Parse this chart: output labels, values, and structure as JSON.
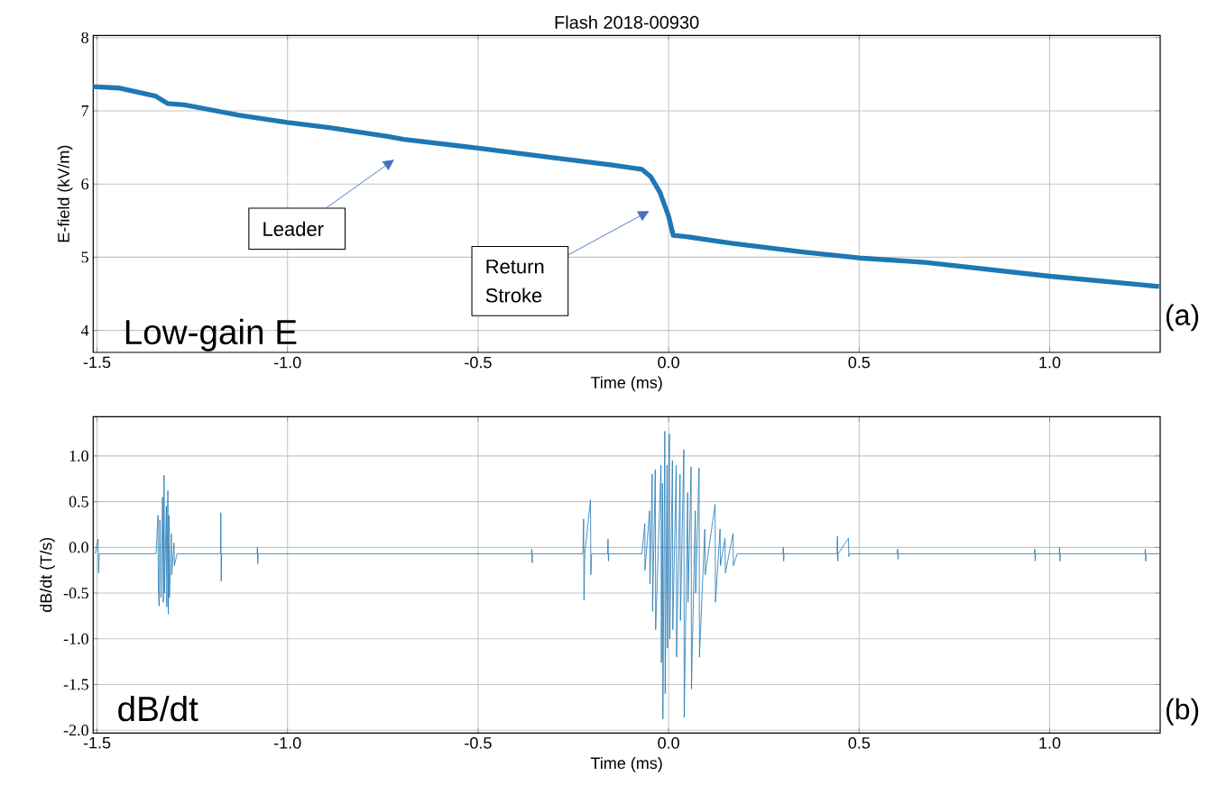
{
  "chart_data": [
    {
      "type": "line",
      "title": "Flash 2018-00930",
      "xlabel": "Time (ms)",
      "ylabel": "E-field (kV/m)",
      "color": "#1f77b4",
      "grid": true,
      "marker": "none",
      "xlim": [
        -1.51,
        1.29
      ],
      "ylim": [
        3.7,
        8.03
      ],
      "xticks": [
        -1.5,
        {
          "value": -1,
          "label": "-1.0"
        },
        -0.5,
        {
          "value": 0,
          "label": "0.0"
        },
        0.5,
        {
          "value": 1,
          "label": "1.0"
        }
      ],
      "yticks": [
        4,
        5,
        6,
        7,
        8
      ],
      "x": [
        -1.51,
        -1.44,
        -1.346,
        -1.315,
        -1.27,
        -1.127,
        -1.0,
        -0.89,
        -0.737,
        -0.695,
        -0.5,
        -0.305,
        -0.148,
        -0.07,
        -0.047,
        -0.023,
        0.0,
        0.012,
        0.047,
        0.164,
        0.352,
        0.5,
        0.673,
        1.0,
        1.287
      ],
      "values": [
        7.33,
        7.31,
        7.2,
        7.1,
        7.08,
        6.94,
        6.84,
        6.77,
        6.65,
        6.61,
        6.49,
        6.36,
        6.26,
        6.2,
        6.1,
        5.89,
        5.56,
        5.3,
        5.28,
        5.19,
        5.07,
        4.99,
        4.93,
        4.74,
        4.6
      ],
      "annotations": [
        "Low-gain E",
        "(a)",
        "Leader",
        "Return Stroke"
      ]
    },
    {
      "type": "line",
      "xlabel": "Time (ms)",
      "ylabel": "dB/dt (T/s)",
      "color": "#1f77b4",
      "grid": true,
      "marker": "none",
      "xlim": [
        -1.51,
        1.29
      ],
      "ylim": [
        -2.03,
        1.43
      ],
      "xticks": [
        -1.5,
        {
          "value": -1,
          "label": "-1.0"
        },
        -0.5,
        {
          "value": 0,
          "label": "0.0"
        },
        0.5,
        {
          "value": 1,
          "label": "1.0"
        }
      ],
      "yticks": [
        {
          "value": -2,
          "label": "-2.0"
        },
        -1.5,
        {
          "value": -1,
          "label": "-1.0"
        },
        -0.5,
        {
          "value": 0,
          "label": "0.0"
        },
        0.5,
        {
          "value": 1,
          "label": "1.0"
        }
      ],
      "x": [
        -1.505,
        -1.497,
        -1.496,
        -1.494,
        -1.4,
        -1.345,
        -1.34,
        -1.339,
        -1.337,
        -1.335,
        -1.332,
        -1.328,
        -1.326,
        -1.324,
        -1.323,
        -1.318,
        -1.317,
        -1.314,
        -1.313,
        -1.311,
        -1.31,
        -1.305,
        -1.304,
        -1.298,
        -1.297,
        -1.29,
        -1.176,
        -1.175,
        -1.174,
        -1.173,
        -1.08,
        -1.079,
        -1.078,
        -1.077,
        -0.6,
        -0.36,
        -0.359,
        -0.358,
        -0.357,
        -0.225,
        -0.223,
        -0.222,
        -0.22,
        -0.205,
        -0.204,
        -0.202,
        -0.16,
        -0.159,
        -0.158,
        -0.157,
        -0.07,
        -0.0625,
        -0.062,
        -0.05,
        -0.049,
        -0.043,
        -0.042,
        -0.035,
        -0.034,
        -0.02,
        -0.019,
        -0.016,
        -0.015,
        -0.01,
        -0.009,
        -0.004,
        -0.003,
        0.002,
        0.003,
        0.01,
        0.011,
        0.02,
        0.021,
        0.03,
        0.031,
        0.04,
        0.041,
        0.05,
        0.051,
        0.059,
        0.06,
        0.07,
        0.071,
        0.08,
        0.081,
        0.095,
        0.096,
        0.122,
        0.123,
        0.135,
        0.136,
        0.148,
        0.149,
        0.169,
        0.17,
        0.18,
        0.3,
        0.301,
        0.302,
        0.303,
        0.442,
        0.443,
        0.444,
        0.445,
        0.472,
        0.473,
        0.474,
        0.6,
        0.601,
        0.602,
        0.603,
        0.96,
        0.961,
        0.962,
        0.963,
        1.025,
        1.026,
        1.027,
        1.028,
        1.25,
        1.251,
        1.252,
        1.253,
        1.29
      ],
      "values": [
        -0.07,
        0.09,
        -0.28,
        -0.07,
        -0.07,
        -0.07,
        0.35,
        -0.45,
        -0.64,
        0.3,
        -0.55,
        0.55,
        -0.6,
        0.79,
        -0.5,
        0.45,
        -0.65,
        0.62,
        -0.73,
        0.35,
        -0.55,
        0.15,
        -0.3,
        0.05,
        -0.2,
        -0.07,
        -0.07,
        0.38,
        -0.37,
        -0.07,
        -0.07,
        0.0,
        -0.18,
        -0.07,
        -0.07,
        -0.07,
        -0.02,
        -0.17,
        -0.07,
        -0.07,
        0.31,
        -0.58,
        -0.07,
        0.52,
        -0.3,
        -0.07,
        -0.07,
        0.09,
        -0.15,
        -0.07,
        -0.07,
        0.26,
        -0.25,
        0.4,
        -0.4,
        0.8,
        -0.7,
        0.85,
        -0.9,
        0.9,
        -1.26,
        0.7,
        -1.88,
        1.27,
        -1.6,
        0.9,
        -1.1,
        1.24,
        -1.0,
        0.95,
        -0.9,
        0.9,
        -1.2,
        0.8,
        -0.8,
        1.07,
        -1.86,
        0.6,
        -0.6,
        0.88,
        -1.55,
        0.4,
        -0.5,
        0.87,
        -1.2,
        0.2,
        -0.3,
        0.47,
        -0.6,
        0.2,
        -0.2,
        0.1,
        -0.28,
        0.15,
        -0.2,
        -0.07,
        -0.07,
        0.0,
        -0.15,
        -0.07,
        -0.07,
        0.12,
        -0.15,
        -0.07,
        0.1,
        -0.1,
        -0.07,
        -0.07,
        -0.02,
        -0.13,
        -0.07,
        -0.07,
        -0.02,
        -0.15,
        -0.07,
        -0.07,
        0.0,
        -0.15,
        -0.07,
        -0.07,
        -0.02,
        -0.15,
        -0.07,
        -0.07
      ],
      "annotations": [
        "dB/dt",
        "(b)"
      ]
    }
  ]
}
